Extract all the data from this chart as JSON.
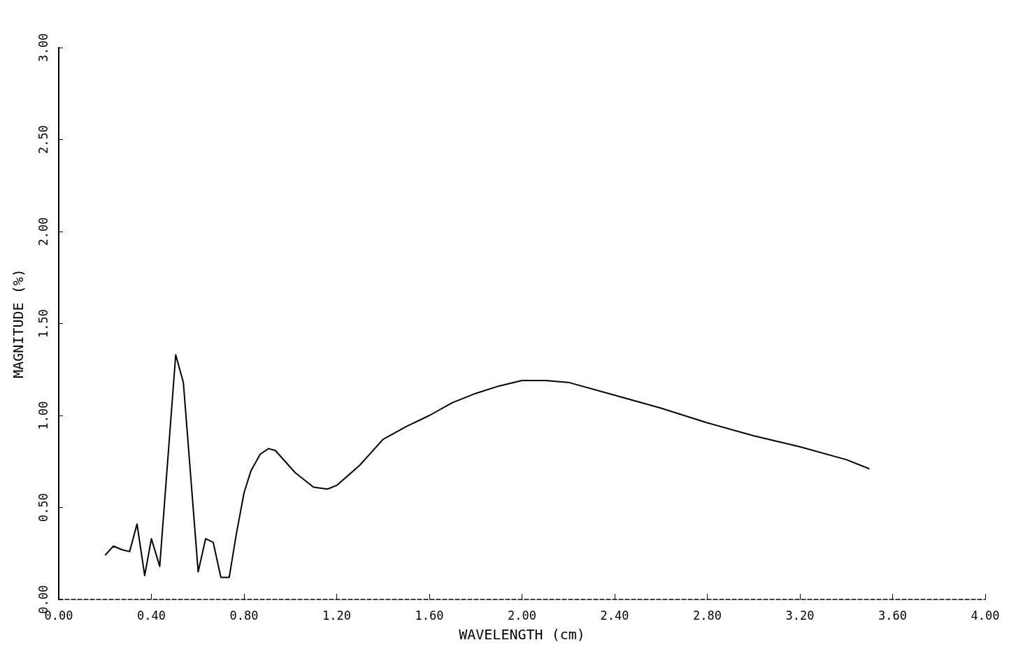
{
  "chart_data": {
    "type": "line",
    "xlabel": "WAVELENGTH (cm)",
    "ylabel": "MAGNITUDE (%)",
    "color": "#000000",
    "x": [
      0.2,
      0.236,
      0.274,
      0.306,
      0.338,
      0.371,
      0.4,
      0.436,
      0.505,
      0.538,
      0.602,
      0.634,
      0.667,
      0.7,
      0.736,
      0.766,
      0.8,
      0.83,
      0.87,
      0.906,
      0.935,
      1.02,
      1.1,
      1.16,
      1.2,
      1.3,
      1.4,
      1.5,
      1.6,
      1.7,
      1.8,
      1.9,
      2.0,
      2.1,
      2.2,
      2.4,
      2.6,
      2.8,
      3.0,
      3.2,
      3.4,
      3.5
    ],
    "values": [
      0.24,
      0.29,
      0.27,
      0.26,
      0.41,
      0.13,
      0.33,
      0.18,
      1.33,
      1.18,
      0.15,
      0.33,
      0.31,
      0.12,
      0.12,
      0.35,
      0.58,
      0.7,
      0.79,
      0.82,
      0.81,
      0.69,
      0.61,
      0.6,
      0.62,
      0.73,
      0.87,
      0.94,
      1.0,
      1.07,
      1.12,
      1.16,
      1.19,
      1.19,
      1.18,
      1.11,
      1.04,
      0.96,
      0.89,
      0.83,
      0.76,
      0.71
    ],
    "xlim": [
      0,
      4
    ],
    "ylim": [
      0,
      3
    ],
    "xticks": [
      {
        "value": 0,
        "label": "0.00"
      },
      {
        "value": 0.4,
        "label": "0.40"
      },
      {
        "value": 0.8,
        "label": "0.80"
      },
      {
        "value": 1.2,
        "label": "1.20"
      },
      {
        "value": 1.6,
        "label": "1.60"
      },
      {
        "value": 2,
        "label": "2.00"
      },
      {
        "value": 2.4,
        "label": "2.40"
      },
      {
        "value": 2.8,
        "label": "2.80"
      },
      {
        "value": 3.2,
        "label": "3.20"
      },
      {
        "value": 3.6,
        "label": "3.60"
      },
      {
        "value": 4,
        "label": "4.00"
      }
    ],
    "yticks": [
      {
        "value": 0,
        "label": "0.00"
      },
      {
        "value": 0.5,
        "label": "0.50"
      },
      {
        "value": 1,
        "label": "1.00"
      },
      {
        "value": 1.5,
        "label": "1.50"
      },
      {
        "value": 2,
        "label": "2.00"
      },
      {
        "value": 2.5,
        "label": "2.50"
      },
      {
        "value": 3,
        "label": "3.00"
      }
    ],
    "grid": false,
    "marker": "none",
    "line_style": "solid"
  }
}
